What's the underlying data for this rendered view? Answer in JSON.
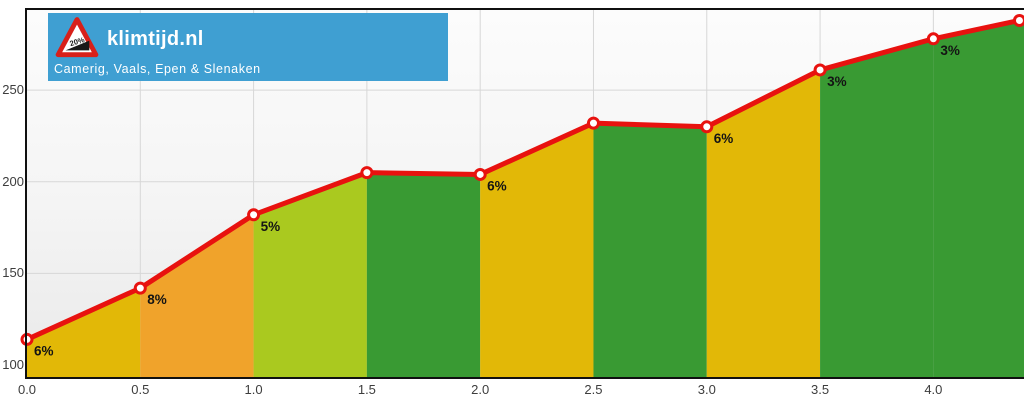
{
  "header": {
    "title": "klimtijd.nl",
    "subtitle": "Camerig, Vaals, Epen & Slenaken",
    "icon_text": "20%",
    "bg_color": "#3f9fd2"
  },
  "colors": {
    "line": "#e8120f",
    "marker_fill": "#ffffff",
    "grid": "#d7d7d7",
    "axis_border": "#101010",
    "tick_text": "#3d3d3d",
    "label_text": "#141414",
    "grade_yellow": "#e2b807",
    "grade_orange": "#f0a32b",
    "grade_light_green": "#aac91f",
    "grade_dark_green": "#399a33"
  },
  "chart_data": {
    "type": "area",
    "title": "",
    "xlabel": "",
    "ylabel": "",
    "xlim": [
      0,
      4.4
    ],
    "ylim": [
      93.5,
      294.8
    ],
    "grid": true,
    "xticks": [
      "0.0",
      "0.5",
      "1.0",
      "1.5",
      "2.0",
      "2.5",
      "3.0",
      "3.5",
      "4.0"
    ],
    "yticks": [
      "100",
      "150",
      "200",
      "250"
    ],
    "points": [
      {
        "x": 0.0,
        "elevation": 114,
        "marker": true
      },
      {
        "x": 0.5,
        "elevation": 142,
        "marker": true
      },
      {
        "x": 1.0,
        "elevation": 182,
        "marker": true
      },
      {
        "x": 1.5,
        "elevation": 205,
        "marker": true
      },
      {
        "x": 2.0,
        "elevation": 204,
        "marker": true
      },
      {
        "x": 2.5,
        "elevation": 232,
        "marker": true
      },
      {
        "x": 3.0,
        "elevation": 230,
        "marker": true
      },
      {
        "x": 3.5,
        "elevation": 261,
        "marker": true
      },
      {
        "x": 4.0,
        "elevation": 278,
        "marker": true
      },
      {
        "x": 4.38,
        "elevation": 288,
        "marker": true
      },
      {
        "x": 4.4,
        "elevation": 289,
        "marker": false
      }
    ],
    "segments": [
      {
        "from": 0.0,
        "to": 0.5,
        "grade": "6%",
        "color": "#e2b807"
      },
      {
        "from": 0.5,
        "to": 1.0,
        "grade": "8%",
        "color": "#f0a32b"
      },
      {
        "from": 1.0,
        "to": 1.5,
        "grade": "5%",
        "color": "#aac91f"
      },
      {
        "from": 1.5,
        "to": 2.0,
        "grade": null,
        "color": "#399a33"
      },
      {
        "from": 2.0,
        "to": 2.5,
        "grade": "6%",
        "color": "#e2b807"
      },
      {
        "from": 2.5,
        "to": 3.0,
        "grade": null,
        "color": "#399a33"
      },
      {
        "from": 3.0,
        "to": 3.5,
        "grade": "6%",
        "color": "#e2b807"
      },
      {
        "from": 3.5,
        "to": 4.0,
        "grade": "3%",
        "color": "#399a33"
      },
      {
        "from": 4.0,
        "to": 4.4,
        "grade": "3%",
        "color": "#399a33"
      }
    ]
  }
}
